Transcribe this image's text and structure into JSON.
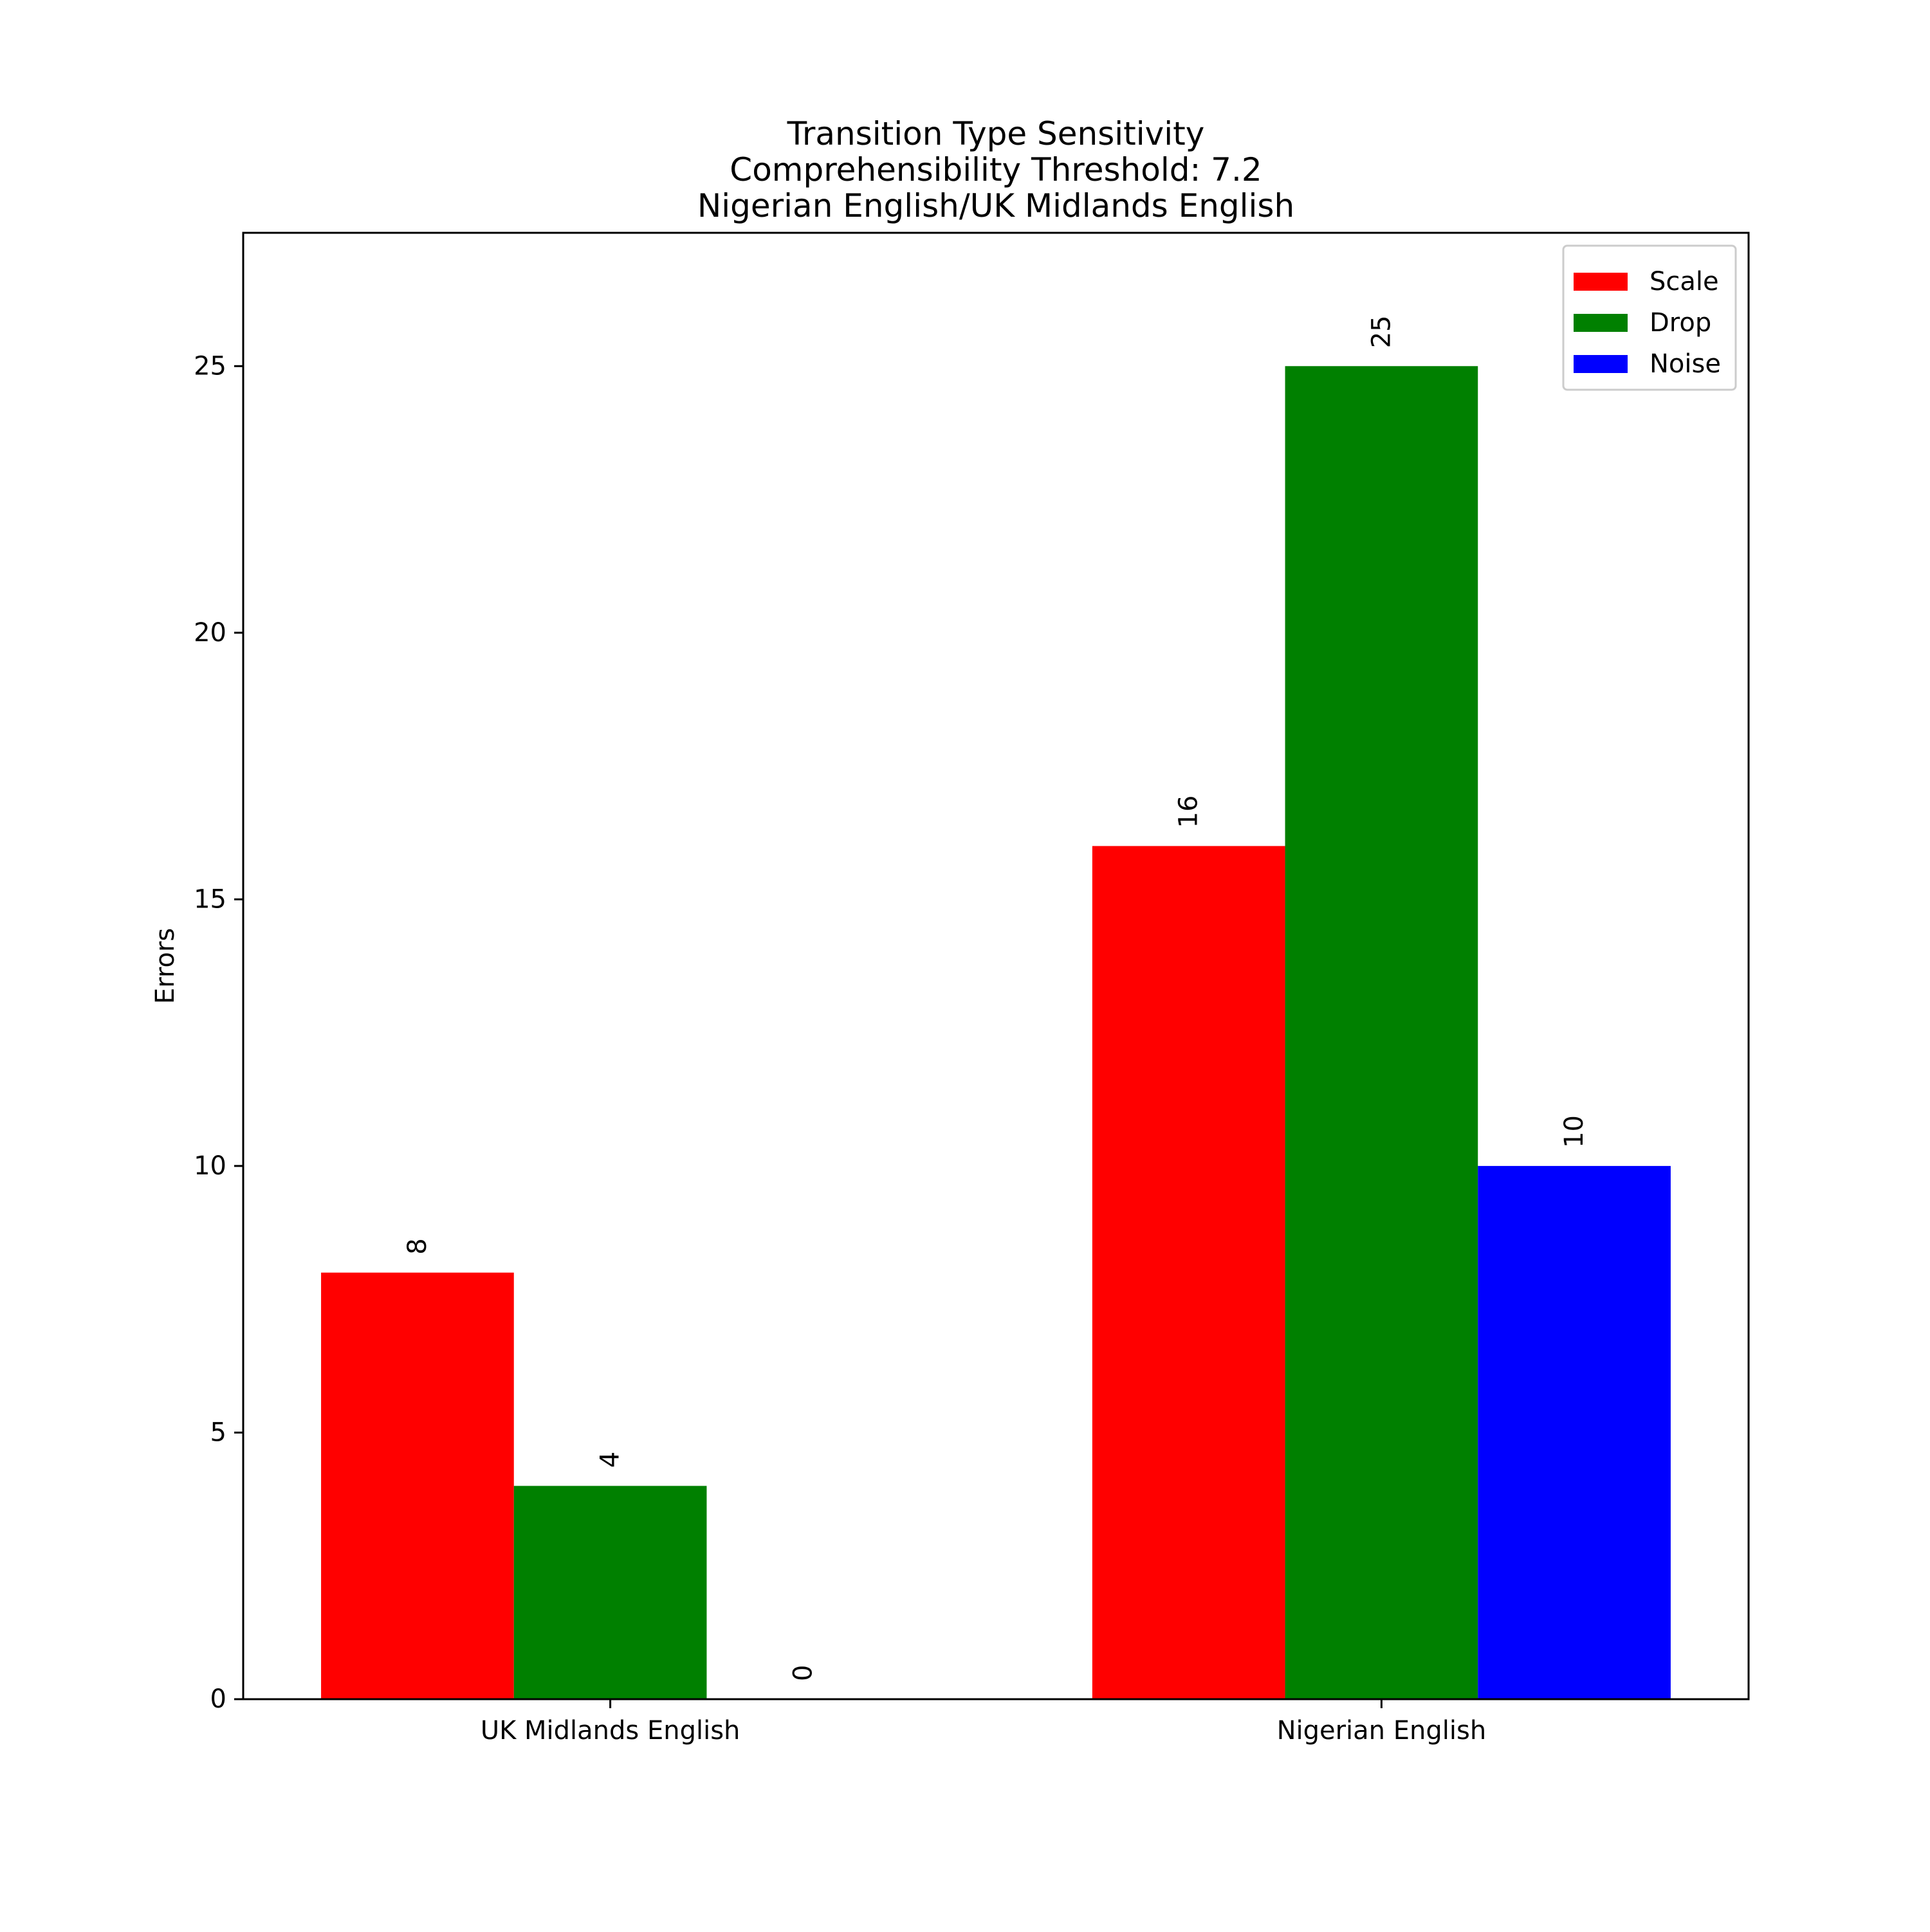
{
  "chart_data": {
    "type": "bar",
    "title_lines": [
      "Transition Type Sensitivity",
      "Comprehensibility Threshold: 7.2",
      "Nigerian English/UK Midlands English"
    ],
    "xlabel": "",
    "ylabel": "Errors",
    "categories": [
      "UK Midlands English",
      "Nigerian English"
    ],
    "series": [
      {
        "name": "Scale",
        "color": "#ff0000",
        "values": [
          8,
          16
        ]
      },
      {
        "name": "Drop",
        "color": "#008000",
        "values": [
          4,
          25
        ]
      },
      {
        "name": "Noise",
        "color": "#0000ff",
        "values": [
          0,
          10
        ]
      }
    ],
    "ylim": [
      0,
      27.5
    ],
    "yticks": [
      0,
      5,
      10,
      15,
      20,
      25
    ],
    "grid": false,
    "legend_position": "top-right"
  }
}
